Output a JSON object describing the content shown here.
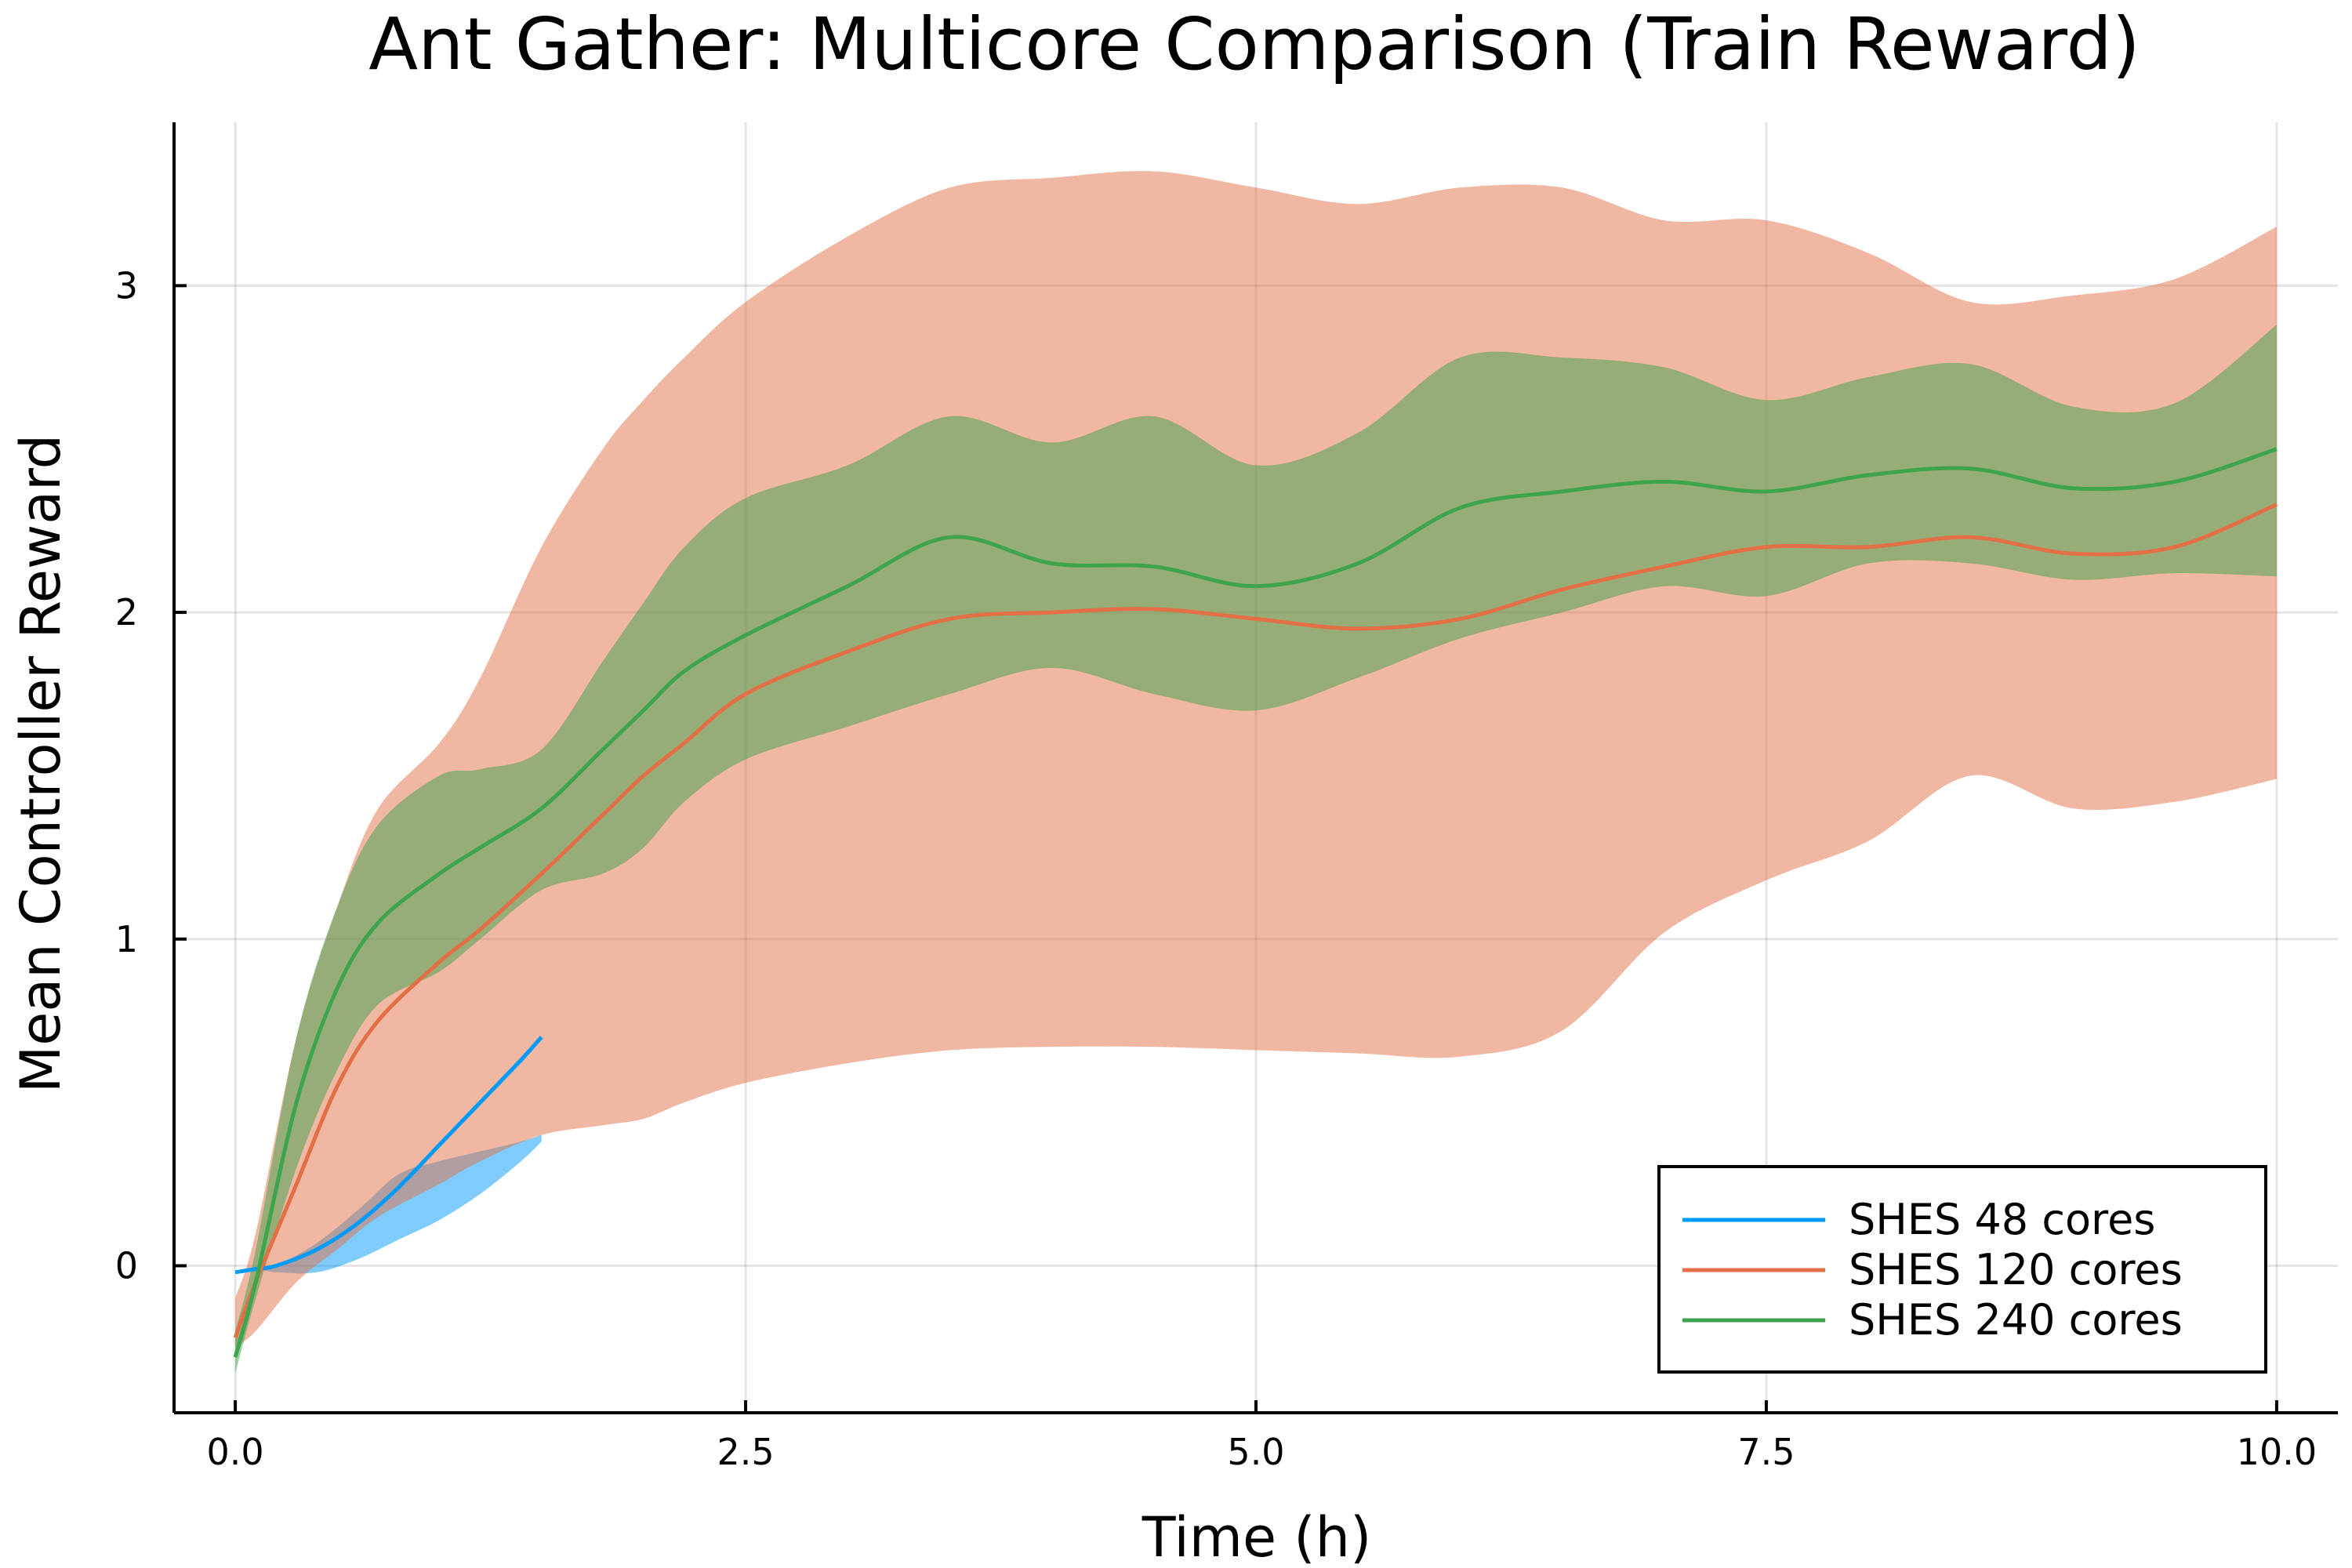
{
  "chart_data": {
    "type": "line",
    "title": "Ant Gather: Multicore Comparison (Train Reward)",
    "xlabel": "Time (h)",
    "ylabel": "Mean Controller Reward",
    "xlim": [
      -0.3,
      10.3
    ],
    "ylim": [
      -0.45,
      3.5
    ],
    "x_ticks": [
      0,
      2.5,
      5,
      7.5,
      10
    ],
    "x_tick_labels": [
      "0.0",
      "2.5",
      "5.0",
      "7.5",
      "10.0"
    ],
    "y_ticks": [
      0,
      1,
      2,
      3
    ],
    "y_tick_labels": [
      "0",
      "1",
      "2",
      "3"
    ],
    "grid": true,
    "legend_position": "bottom-right",
    "series": [
      {
        "name": "SHES 48 cores",
        "color": "#009af9",
        "band_color": "#009af9",
        "x": [
          0,
          0.1,
          0.2,
          0.4,
          0.6,
          0.8,
          1.0,
          1.2,
          1.4,
          1.5
        ],
        "mean": [
          -0.02,
          -0.01,
          0.0,
          0.05,
          0.13,
          0.24,
          0.37,
          0.5,
          0.63,
          0.7
        ],
        "lower": [
          -0.02,
          -0.01,
          -0.02,
          -0.02,
          0.02,
          0.08,
          0.14,
          0.22,
          0.32,
          0.38
        ],
        "upper": [
          -0.02,
          -0.01,
          0.0,
          0.07,
          0.17,
          0.28,
          0.32,
          0.35,
          0.38,
          0.4
        ]
      },
      {
        "name": "SHES 120 cores",
        "color": "#e26f46",
        "band_color": "#e26f46",
        "x": [
          0,
          0.1,
          0.3,
          0.5,
          0.7,
          1.0,
          1.2,
          1.5,
          1.8,
          2.0,
          2.2,
          2.5,
          3.0,
          3.5,
          4.0,
          4.5,
          5.0,
          5.5,
          6.0,
          6.5,
          7.0,
          7.5,
          8.0,
          8.5,
          9.0,
          9.5,
          10.0
        ],
        "mean": [
          -0.22,
          -0.05,
          0.25,
          0.55,
          0.75,
          0.93,
          1.03,
          1.2,
          1.38,
          1.5,
          1.6,
          1.75,
          1.88,
          1.98,
          2.0,
          2.01,
          1.98,
          1.95,
          1.98,
          2.07,
          2.14,
          2.2,
          2.2,
          2.23,
          2.18,
          2.2,
          2.33
        ],
        "lower": [
          -0.25,
          -0.2,
          -0.05,
          0.05,
          0.15,
          0.25,
          0.32,
          0.4,
          0.43,
          0.45,
          0.5,
          0.56,
          0.62,
          0.66,
          0.67,
          0.67,
          0.66,
          0.65,
          0.64,
          0.72,
          1.02,
          1.18,
          1.3,
          1.5,
          1.4,
          1.42,
          1.49
        ],
        "upper": [
          -0.1,
          0.1,
          0.7,
          1.1,
          1.4,
          1.6,
          1.8,
          2.2,
          2.5,
          2.65,
          2.78,
          2.95,
          3.15,
          3.3,
          3.33,
          3.35,
          3.3,
          3.25,
          3.3,
          3.3,
          3.2,
          3.2,
          3.1,
          2.95,
          2.97,
          3.02,
          3.18
        ]
      },
      {
        "name": "SHES 240 cores",
        "color": "#3ea44e",
        "band_color": "#3ea44e",
        "x": [
          0,
          0.1,
          0.3,
          0.5,
          0.7,
          1.0,
          1.2,
          1.5,
          1.8,
          2.0,
          2.2,
          2.5,
          3.0,
          3.5,
          4.0,
          4.5,
          5.0,
          5.5,
          6.0,
          6.5,
          7.0,
          7.5,
          8.0,
          8.5,
          9.0,
          9.5,
          10.0
        ],
        "mean": [
          -0.28,
          -0.05,
          0.5,
          0.85,
          1.05,
          1.2,
          1.28,
          1.4,
          1.58,
          1.7,
          1.82,
          1.93,
          2.08,
          2.23,
          2.15,
          2.14,
          2.08,
          2.15,
          2.32,
          2.37,
          2.4,
          2.37,
          2.42,
          2.44,
          2.38,
          2.4,
          2.5
        ],
        "lower": [
          -0.33,
          -0.1,
          0.3,
          0.6,
          0.8,
          0.9,
          1.0,
          1.15,
          1.2,
          1.28,
          1.42,
          1.55,
          1.65,
          1.75,
          1.83,
          1.75,
          1.7,
          1.8,
          1.92,
          2.0,
          2.08,
          2.05,
          2.15,
          2.15,
          2.1,
          2.12,
          2.11
        ],
        "upper": [
          -0.2,
          0.05,
          0.7,
          1.1,
          1.35,
          1.5,
          1.52,
          1.58,
          1.85,
          2.03,
          2.2,
          2.35,
          2.45,
          2.6,
          2.52,
          2.6,
          2.45,
          2.55,
          2.78,
          2.78,
          2.75,
          2.65,
          2.72,
          2.76,
          2.63,
          2.64,
          2.88
        ]
      }
    ]
  }
}
